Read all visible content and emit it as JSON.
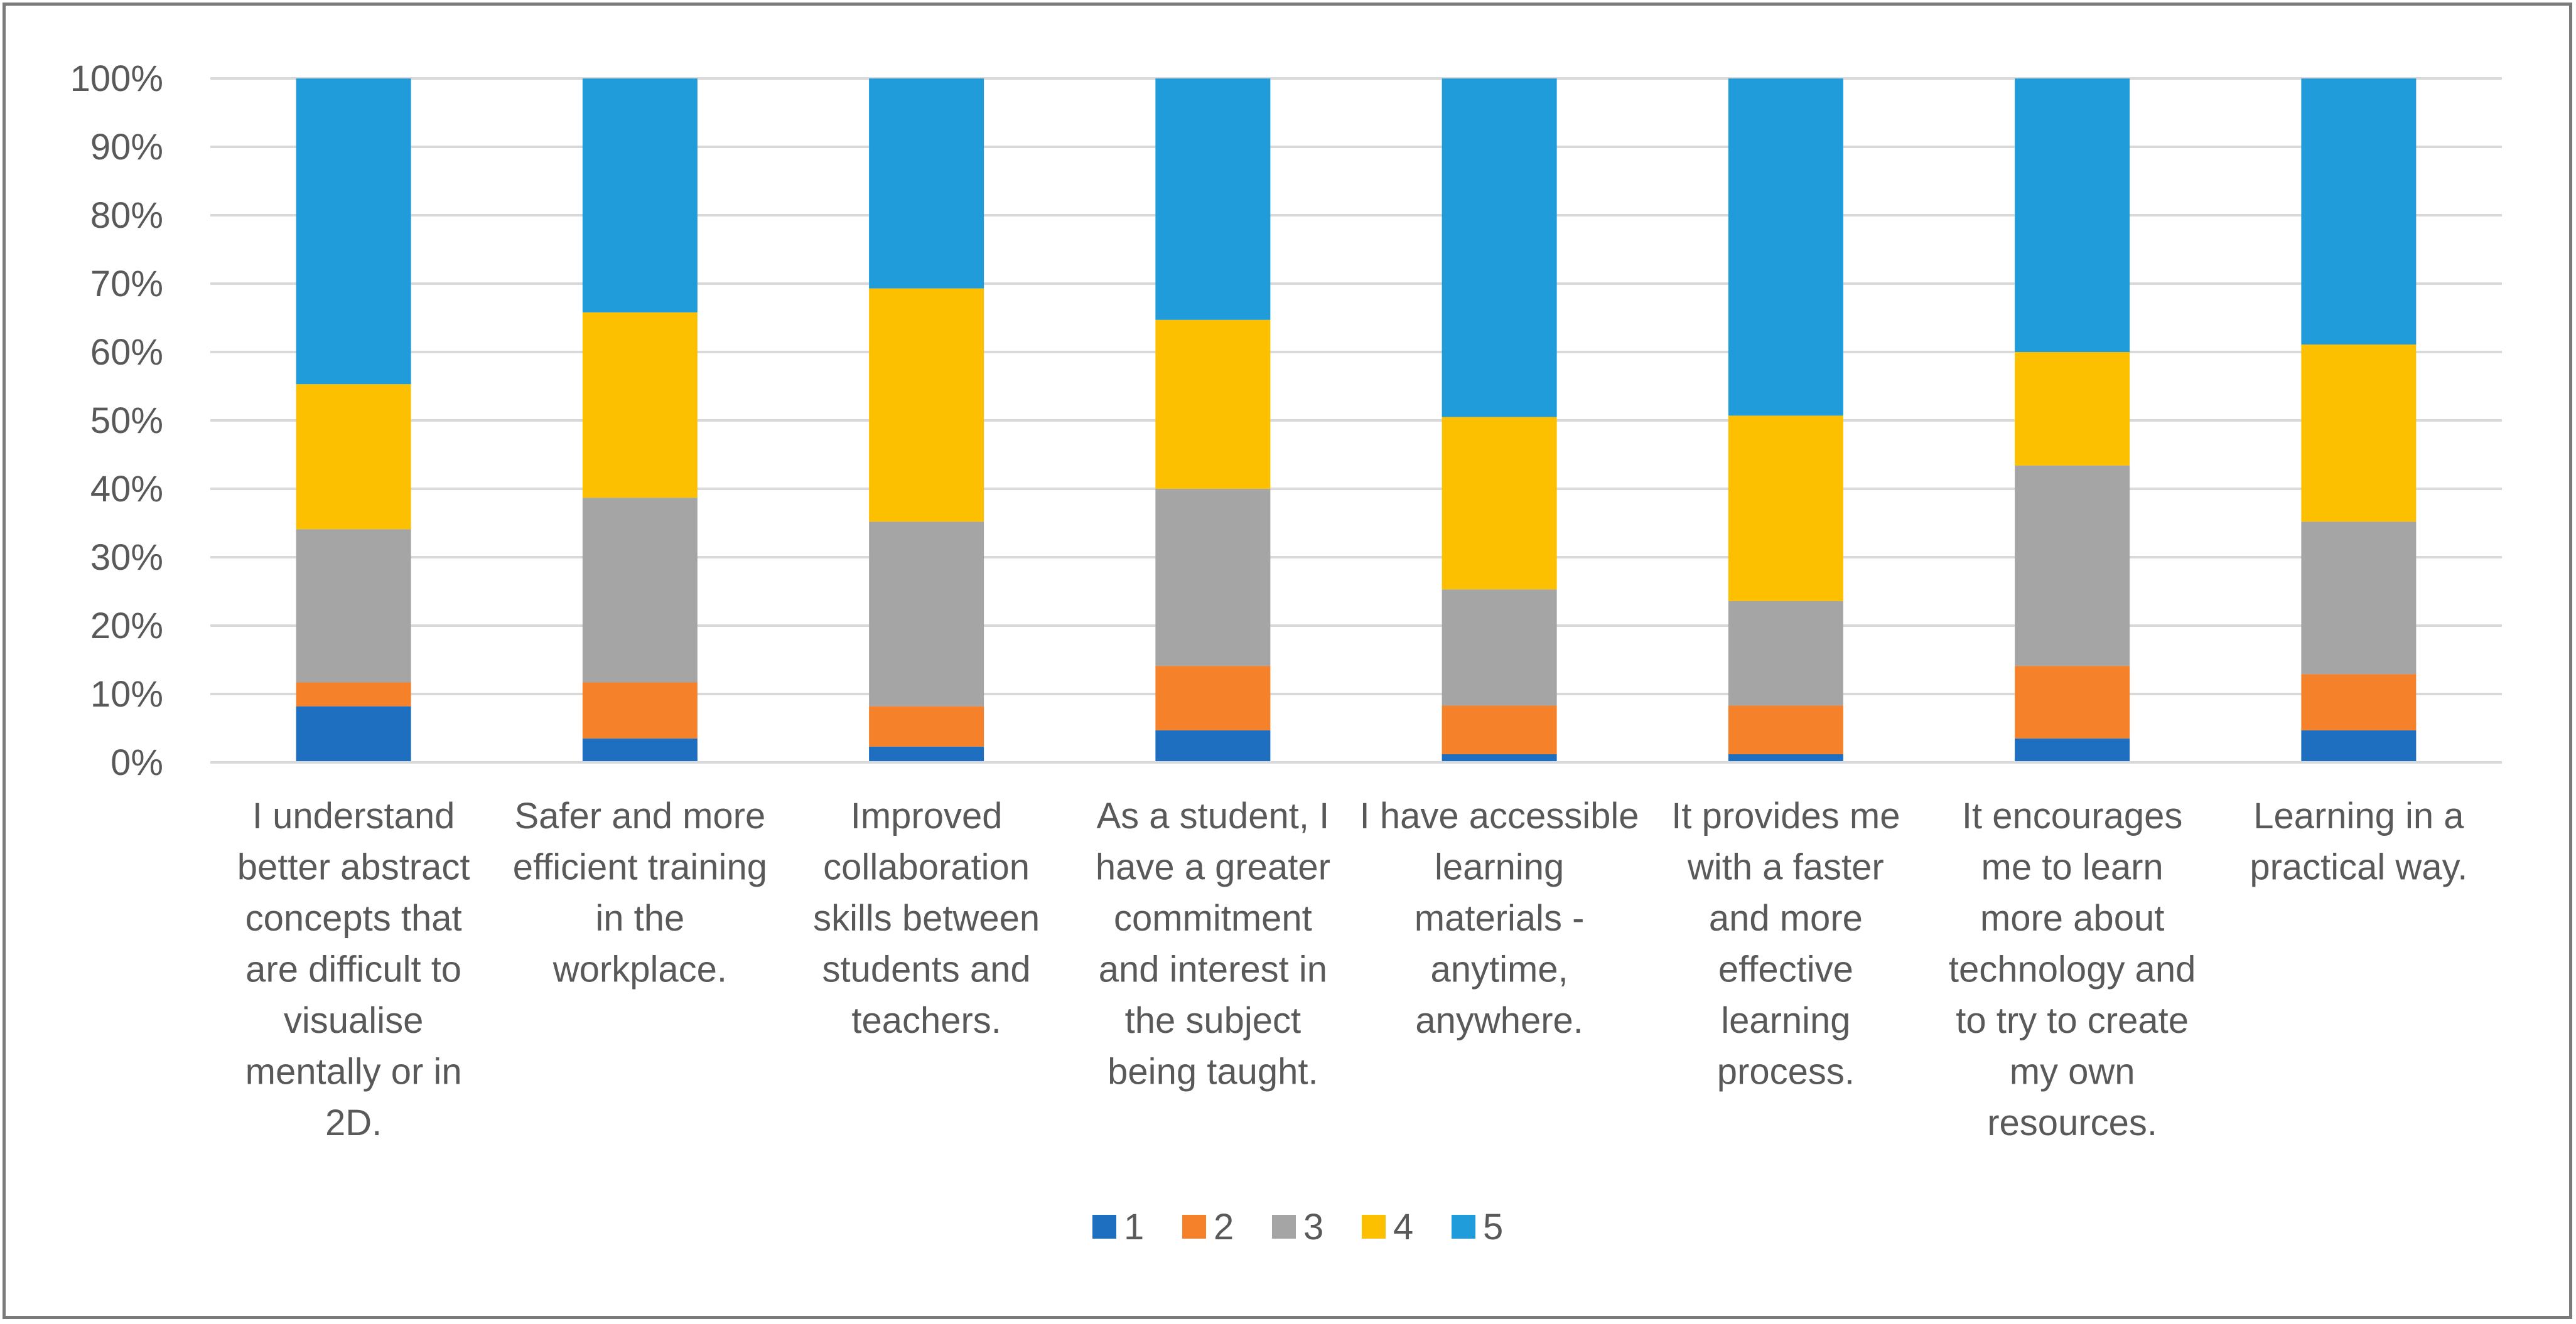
{
  "chart_data": {
    "type": "bar",
    "stacked": true,
    "normalized": true,
    "title": "",
    "xlabel": "",
    "ylabel": "",
    "ylim": [
      0,
      100
    ],
    "y_ticks": [
      "0%",
      "10%",
      "20%",
      "30%",
      "40%",
      "50%",
      "60%",
      "70%",
      "80%",
      "90%",
      "100%"
    ],
    "grid": true,
    "legend_position": "bottom",
    "categories": [
      [
        "I understand",
        "better abstract",
        "concepts that",
        "are difficult to",
        "visualise",
        "mentally or in",
        "2D."
      ],
      [
        "Safer and more",
        "efficient training",
        "in the",
        "workplace."
      ],
      [
        "Improved",
        "collaboration",
        "skills between",
        "students and",
        "teachers."
      ],
      [
        "As a student, I",
        "have a greater",
        "commitment",
        "and interest in",
        "the subject",
        "being taught."
      ],
      [
        "I have accessible",
        "learning",
        "materials -",
        "anytime,",
        "anywhere."
      ],
      [
        "It provides me",
        "with a faster",
        "and more",
        "effective",
        "learning",
        "process."
      ],
      [
        "It encourages",
        "me to learn",
        "more about",
        "technology and",
        "to try to create",
        "my own",
        "resources."
      ],
      [
        "Learning in a",
        "practical way."
      ]
    ],
    "series": [
      {
        "name": "1",
        "color": "#1f6fc1",
        "values": [
          8.2,
          3.5,
          2.3,
          4.7,
          1.2,
          1.2,
          3.5,
          4.7
        ]
      },
      {
        "name": "2",
        "color": "#f5812b",
        "values": [
          3.5,
          8.2,
          5.9,
          9.4,
          7.1,
          7.1,
          10.6,
          8.2
        ]
      },
      {
        "name": "3",
        "color": "#a5a5a5",
        "values": [
          22.4,
          27.0,
          27.0,
          25.9,
          17.0,
          15.3,
          29.3,
          22.3
        ]
      },
      {
        "name": "4",
        "color": "#fdc000",
        "values": [
          21.2,
          27.1,
          34.1,
          24.7,
          25.2,
          27.1,
          16.6,
          25.9
        ]
      },
      {
        "name": "5",
        "color": "#1f9cd9",
        "values": [
          44.7,
          34.2,
          30.7,
          35.3,
          49.5,
          49.3,
          40.0,
          38.9
        ]
      }
    ]
  }
}
